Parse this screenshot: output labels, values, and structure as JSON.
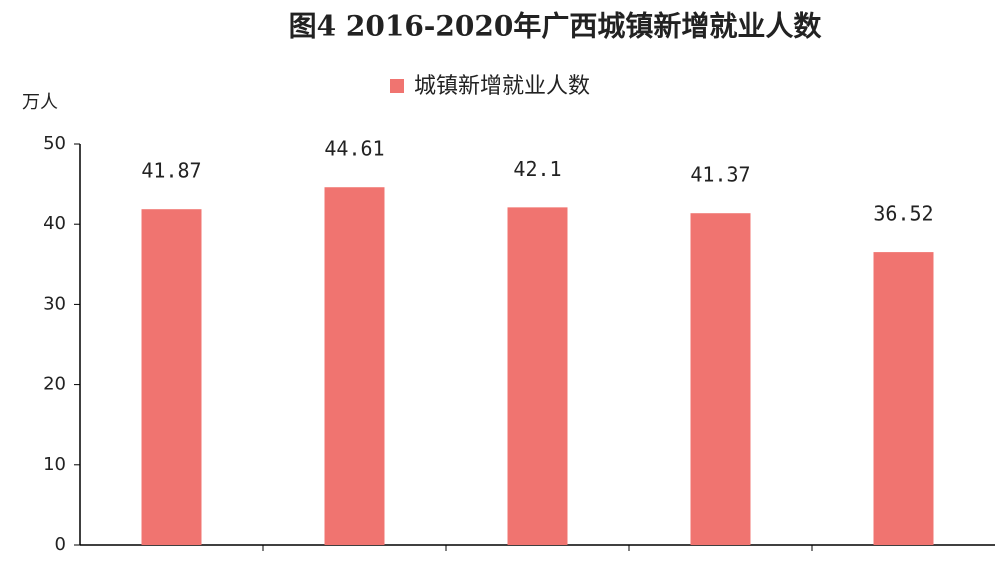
{
  "chart_data": {
    "type": "bar",
    "title": "图4 2016-2020年广西城镇新增就业人数",
    "y_label": "万人",
    "categories": [
      null,
      null,
      null,
      null,
      null
    ],
    "series": [
      {
        "name": "城镇新增就业人数",
        "color": "#f07470",
        "values": [
          41.87,
          44.61,
          42.1,
          41.37,
          36.52
        ]
      }
    ],
    "ylim": [
      0,
      50
    ],
    "yticks": [
      0,
      10,
      20,
      30,
      40,
      50
    ],
    "grid": false,
    "legend": "top"
  }
}
